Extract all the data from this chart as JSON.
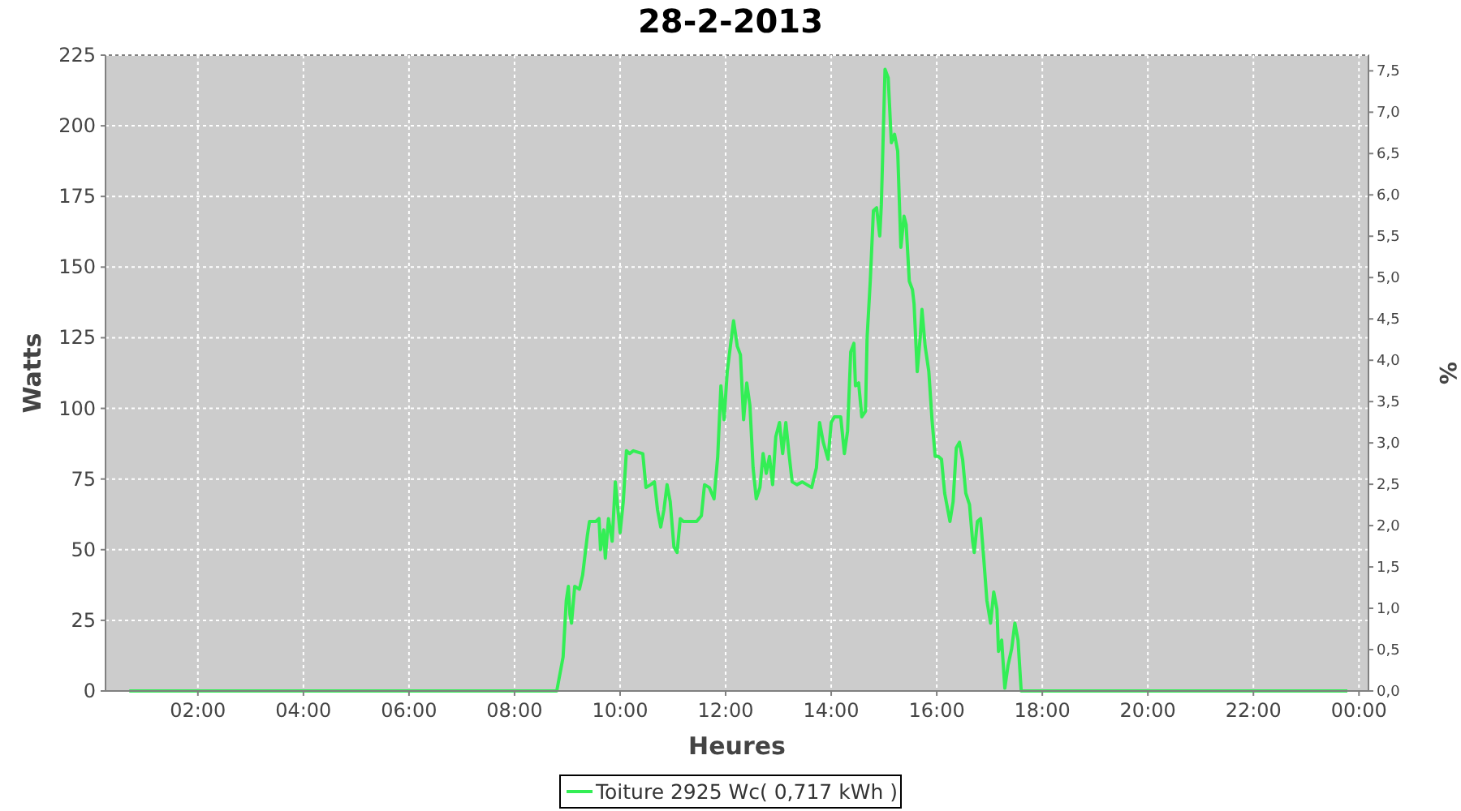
{
  "chart_data": {
    "type": "line",
    "title": "28-2-2013",
    "xlabel": "Heures",
    "ylabel": "Watts",
    "y2label": "%",
    "xlim": [
      0.25,
      24.18
    ],
    "xticks": [
      {
        "value": 2,
        "label": "02:00"
      },
      {
        "value": 4,
        "label": "04:00"
      },
      {
        "value": 6,
        "label": "06:00"
      },
      {
        "value": 8,
        "label": "08:00"
      },
      {
        "value": 10,
        "label": "10:00"
      },
      {
        "value": 12,
        "label": "12:00"
      },
      {
        "value": 14,
        "label": "14:00"
      },
      {
        "value": 16,
        "label": "16:00"
      },
      {
        "value": 18,
        "label": "18:00"
      },
      {
        "value": 20,
        "label": "20:00"
      },
      {
        "value": 22,
        "label": "22:00"
      },
      {
        "value": 24,
        "label": "00:00"
      }
    ],
    "ylim": [
      0,
      225
    ],
    "yticks": [
      0,
      25,
      50,
      75,
      100,
      125,
      150,
      175,
      200,
      225
    ],
    "y2lim": [
      0,
      7.69
    ],
    "y2ticks": [
      {
        "value": 0,
        "label": "0,0"
      },
      {
        "value": 0.5,
        "label": "0,5"
      },
      {
        "value": 1,
        "label": "1,0"
      },
      {
        "value": 1.5,
        "label": "1,5"
      },
      {
        "value": 2,
        "label": "2,0"
      },
      {
        "value": 2.5,
        "label": "2,5"
      },
      {
        "value": 3,
        "label": "3,0"
      },
      {
        "value": 3.5,
        "label": "3,5"
      },
      {
        "value": 4,
        "label": "4,0"
      },
      {
        "value": 4.5,
        "label": "4,5"
      },
      {
        "value": 5,
        "label": "5,0"
      },
      {
        "value": 5.5,
        "label": "5,5"
      },
      {
        "value": 6,
        "label": "6,0"
      },
      {
        "value": 6.5,
        "label": "6,5"
      },
      {
        "value": 7,
        "label": "7,0"
      },
      {
        "value": 7.5,
        "label": "7,5"
      }
    ],
    "grid": true,
    "legend": "bottom",
    "series": [
      {
        "name": "Toiture 2925 Wc( 0,717 kWh )",
        "color": "#33ee55",
        "x": [
          0.7,
          8.8,
          8.92,
          8.98,
          9.02,
          9.05,
          9.08,
          9.14,
          9.23,
          9.29,
          9.38,
          9.42,
          9.54,
          9.6,
          9.63,
          9.69,
          9.72,
          9.78,
          9.85,
          9.91,
          10.0,
          10.06,
          10.12,
          10.18,
          10.25,
          10.43,
          10.49,
          10.58,
          10.65,
          10.71,
          10.77,
          10.83,
          10.89,
          10.95,
          11.02,
          11.08,
          11.14,
          11.2,
          11.32,
          11.45,
          11.54,
          11.6,
          11.69,
          11.78,
          11.85,
          11.91,
          11.97,
          12.03,
          12.15,
          12.22,
          12.28,
          12.34,
          12.4,
          12.46,
          12.52,
          12.58,
          12.65,
          12.71,
          12.77,
          12.83,
          12.89,
          12.95,
          13.02,
          13.08,
          13.14,
          13.2,
          13.26,
          13.35,
          13.45,
          13.54,
          13.63,
          13.72,
          13.78,
          13.85,
          13.94,
          14.0,
          14.06,
          14.18,
          14.25,
          14.31,
          14.37,
          14.43,
          14.46,
          14.52,
          14.58,
          14.65,
          14.68,
          14.74,
          14.8,
          14.86,
          14.92,
          14.95,
          15.02,
          15.08,
          15.14,
          15.2,
          15.26,
          15.32,
          15.38,
          15.42,
          15.48,
          15.54,
          15.57,
          15.63,
          15.69,
          15.72,
          15.78,
          15.85,
          15.91,
          15.97,
          16.03,
          16.09,
          16.15,
          16.25,
          16.31,
          16.37,
          16.43,
          16.49,
          16.55,
          16.62,
          16.68,
          16.71,
          16.77,
          16.83,
          16.89,
          16.95,
          17.02,
          17.08,
          17.14,
          17.17,
          17.23,
          17.29,
          17.35,
          17.42,
          17.48,
          17.54,
          17.6,
          17.66,
          23.78
        ],
        "values": [
          0,
          0,
          12,
          32,
          37,
          27,
          24,
          37,
          36,
          41,
          55,
          60,
          60,
          61,
          50,
          57,
          47,
          61,
          53,
          74,
          56,
          67,
          85,
          84,
          85,
          84,
          72,
          73,
          74,
          64,
          58,
          64,
          73,
          67,
          51,
          49,
          61,
          60,
          60,
          60,
          62,
          73,
          72,
          68,
          83,
          108,
          96,
          113,
          131,
          122,
          119,
          96,
          109,
          101,
          79,
          68,
          72,
          84,
          77,
          83,
          73,
          90,
          95,
          84,
          95,
          84,
          74,
          73,
          74,
          73,
          72,
          79,
          95,
          88,
          82,
          95,
          97,
          97,
          84,
          92,
          120,
          123,
          108,
          109,
          97,
          99,
          125,
          145,
          170,
          171,
          161,
          172,
          220,
          217,
          194,
          197,
          191,
          157,
          168,
          165,
          145,
          142,
          137,
          113,
          126,
          135,
          122,
          113,
          96,
          83,
          83,
          82,
          70,
          60,
          67,
          86,
          88,
          82,
          70,
          66,
          53,
          49,
          60,
          61,
          47,
          32,
          24,
          35,
          29,
          14,
          18,
          1,
          9,
          15,
          24,
          18,
          0,
          0,
          0
        ]
      }
    ]
  }
}
